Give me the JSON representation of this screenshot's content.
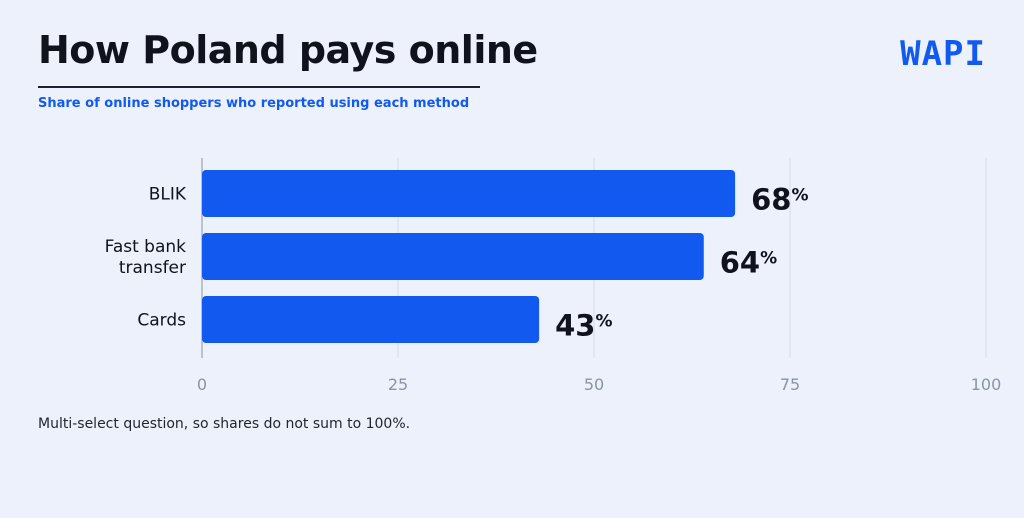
{
  "header": {
    "title": "How Poland pays online",
    "subtitle": "Share of online shoppers who reported using each method",
    "logo": "WAPI"
  },
  "footnote": "Multi-select question, so shares do not sum to 100%.",
  "colors": {
    "background": "#edf1fb",
    "bar": "#1259f0",
    "text": "#10131c",
    "tick": "#8a93a8",
    "accent": "#1259f0"
  },
  "chart_data": {
    "type": "bar",
    "orientation": "horizontal",
    "categories": [
      [
        "BLIK"
      ],
      [
        "Fast bank",
        "transfer"
      ],
      [
        "Cards"
      ]
    ],
    "values": [
      68,
      64,
      43
    ],
    "value_suffix": "%",
    "xlim": [
      0,
      100
    ],
    "xticks": [
      0,
      25,
      50,
      75,
      100
    ],
    "grid": true
  }
}
